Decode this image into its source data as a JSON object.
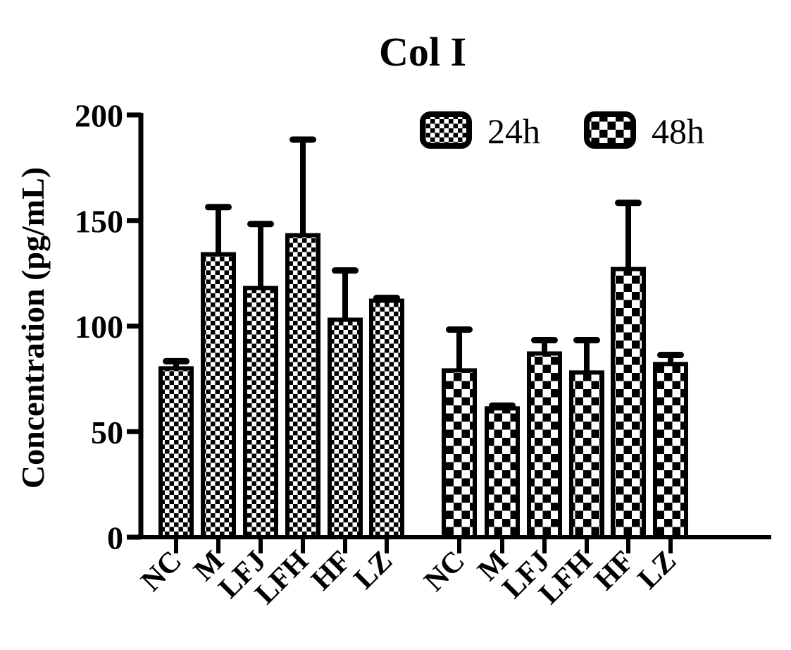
{
  "chart_data": {
    "type": "bar",
    "title": "Col I",
    "ylabel": "Concentration (pg/mL)",
    "xlabel": "",
    "ylim": [
      0,
      200
    ],
    "yticks": [
      0,
      50,
      100,
      150,
      200
    ],
    "grid": false,
    "legend_position": "top-right-inside",
    "categories": [
      "NC",
      "M",
      "LFJ",
      "LFH",
      "HF",
      "LZ"
    ],
    "series": [
      {
        "name": "24h",
        "pattern": "fine-checker",
        "values": [
          80,
          134,
          118,
          143,
          103,
          112
        ],
        "errors_up": [
          5,
          24,
          32,
          47,
          25,
          3
        ]
      },
      {
        "name": "48h",
        "pattern": "coarse-checker",
        "values": [
          79,
          61,
          87,
          78,
          127,
          82
        ],
        "errors_up": [
          21,
          3,
          8,
          17,
          33,
          6
        ]
      }
    ],
    "colors": {
      "bar_fill_background": "#ffffff",
      "bar_pattern": "#000000",
      "bar_stroke": "#000000",
      "axis": "#000000",
      "text": "#000000"
    }
  }
}
